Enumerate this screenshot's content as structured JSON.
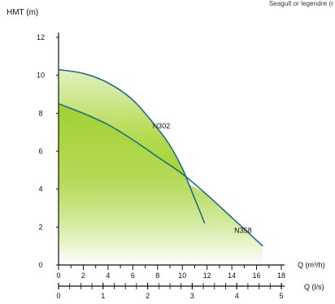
{
  "header": {
    "corner_note": "Seagull or legendre (r"
  },
  "chart_data": {
    "type": "line",
    "ylabel": "HMT (m)",
    "xlabel_primary": "Q (m³/h)",
    "xlabel_secondary": "Q (l/s)",
    "y_ticks": [
      0,
      2,
      4,
      6,
      8,
      10,
      12
    ],
    "x_ticks_primary": [
      0,
      2,
      4,
      6,
      8,
      10,
      12,
      14,
      16,
      18
    ],
    "x_ticks_secondary": [
      0,
      1,
      2,
      3,
      4,
      5
    ],
    "xlim": [
      0,
      18
    ],
    "ylim": [
      0,
      12
    ],
    "grid": false,
    "fill_colors": {
      "fill_top": "#9acd1e",
      "fill_bottom": "#ffffff",
      "curve": "#1d6e86",
      "axis": "#111111"
    },
    "series": [
      {
        "name": "N302",
        "x": [
          0,
          2,
          4,
          6,
          8,
          9,
          10,
          10.5,
          11,
          11.5,
          11.8
        ],
        "y": [
          10.3,
          10.1,
          9.6,
          8.7,
          7.2,
          6.3,
          5.1,
          4.3,
          3.5,
          2.7,
          2.2
        ]
      },
      {
        "name": "N358",
        "x": [
          0,
          2,
          4,
          6,
          8,
          10,
          12,
          14,
          16,
          16.5
        ],
        "y": [
          8.5,
          8.0,
          7.4,
          6.6,
          5.7,
          4.8,
          3.7,
          2.5,
          1.3,
          1.0
        ]
      }
    ]
  }
}
